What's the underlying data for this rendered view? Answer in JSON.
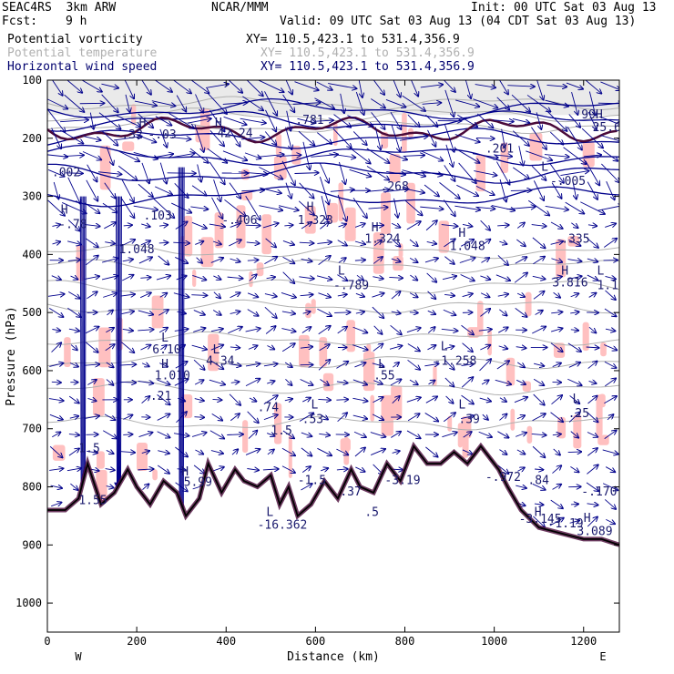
{
  "header": {
    "model": "SEAC4RS  3km ARW",
    "fcst_label": "Fcst:",
    "fcst_value": "9 h",
    "org": "NCAR/MMM",
    "init": "Init: 00 UTC Sat 03 Aug 13",
    "valid": "Valid: 09 UTC Sat 03 Aug 13 (04 CDT Sat 03 Aug 13)"
  },
  "fields": [
    {
      "name": "Potential vorticity",
      "xy": "XY= 110.5,423.1 to 531.4,356.9",
      "color": "#000000"
    },
    {
      "name": "Potential temperature",
      "xy": "XY= 110.5,423.1 to 531.4,356.9",
      "color": "#b0b0b0"
    },
    {
      "name": "Horizontal wind speed",
      "xy": "XY= 110.5,423.1 to 531.4,356.9",
      "color": "#00006e"
    }
  ],
  "colors": {
    "pv_fill": "#ffc0c0",
    "pv_dark": "#4a0a3a",
    "theta": "#b0b0b0",
    "wind": "#00008b",
    "terrain": "#000000"
  },
  "chart_data": {
    "type": "cross-section",
    "xlabel": "Distance (km)",
    "ylabel": "Pressure (hPa)",
    "xlim": [
      0,
      1280
    ],
    "ylim": [
      1050,
      100
    ],
    "x_ticks": [
      0,
      200,
      400,
      600,
      800,
      1000,
      1200
    ],
    "y_ticks": [
      100,
      200,
      300,
      400,
      500,
      600,
      700,
      800,
      900,
      1000
    ],
    "x_end_labels": {
      "left": "W",
      "right": "E"
    },
    "terrain": {
      "x": [
        0,
        40,
        70,
        90,
        120,
        150,
        180,
        200,
        230,
        260,
        290,
        310,
        340,
        360,
        390,
        420,
        440,
        470,
        500,
        520,
        540,
        560,
        590,
        620,
        650,
        680,
        700,
        730,
        760,
        790,
        820,
        850,
        880,
        910,
        940,
        970,
        990,
        1010,
        1030,
        1060,
        1100,
        1150,
        1200,
        1240,
        1280
      ],
      "p": [
        840,
        840,
        820,
        760,
        830,
        810,
        770,
        800,
        830,
        790,
        810,
        850,
        820,
        760,
        810,
        770,
        790,
        800,
        780,
        830,
        800,
        850,
        830,
        790,
        820,
        770,
        800,
        810,
        760,
        790,
        730,
        760,
        760,
        740,
        760,
        730,
        750,
        770,
        800,
        840,
        870,
        880,
        890,
        890,
        900
      ]
    },
    "theta_contours_p": [
      140,
      160,
      180,
      395,
      420,
      455,
      490,
      545,
      585,
      630,
      690
    ],
    "wind_grid": {
      "x_step_km": 40,
      "p_step_hpa": 30
    },
    "annotations": [
      {
        "t": "H",
        "x": 205,
        "p": 180
      },
      {
        "t": "-.03",
        "x": 225,
        "p": 200
      },
      {
        "t": "H",
        "x": 375,
        "p": 180
      },
      {
        "t": "42.24",
        "x": 380,
        "p": 198
      },
      {
        "t": ".781",
        "x": 555,
        "p": 175
      },
      {
        "t": "-.32",
        "x": 150,
        "p": 200
      },
      {
        "t": ".201",
        "x": 980,
        "p": 225
      },
      {
        "t": "99H",
        "x": 1195,
        "p": 166
      },
      {
        "t": "25.6",
        "x": 1220,
        "p": 188
      },
      {
        "t": ".002",
        "x": 10,
        "p": 265
      },
      {
        "t": "L",
        "x": 1105,
        "p": 256
      },
      {
        "t": "-.005",
        "x": 1125,
        "p": 280
      },
      {
        "t": ".268",
        "x": 745,
        "p": 290
      },
      {
        "t": "H",
        "x": 30,
        "p": 330
      },
      {
        "t": "-.78",
        "x": 25,
        "p": 355
      },
      {
        "t": ".103",
        "x": 215,
        "p": 340
      },
      {
        "t": "H",
        "x": 580,
        "p": 325
      },
      {
        "t": "1.323",
        "x": 560,
        "p": 348
      },
      {
        "t": "-.406",
        "x": 390,
        "p": 348
      },
      {
        "t": "H",
        "x": 725,
        "p": 360
      },
      {
        "t": "1.324",
        "x": 710,
        "p": 380
      },
      {
        "t": "H",
        "x": 920,
        "p": 370
      },
      {
        "t": "1.048",
        "x": 900,
        "p": 392
      },
      {
        "t": "1.048",
        "x": 160,
        "p": 398
      },
      {
        "t": ".335",
        "x": 1150,
        "p": 380
      },
      {
        "t": "L",
        "x": 650,
        "p": 435
      },
      {
        "t": "-.789",
        "x": 640,
        "p": 460
      },
      {
        "t": "H",
        "x": 1150,
        "p": 435
      },
      {
        "t": "3.816",
        "x": 1130,
        "p": 455
      },
      {
        "t": "L",
        "x": 1230,
        "p": 435
      },
      {
        "t": "1.14",
        "x": 1230,
        "p": 460
      },
      {
        "t": "L",
        "x": 255,
        "p": 550
      },
      {
        "t": "6.10",
        "x": 235,
        "p": 570
      },
      {
        "t": "L",
        "x": 370,
        "p": 570
      },
      {
        "t": "4.34",
        "x": 355,
        "p": 590
      },
      {
        "t": "H",
        "x": 255,
        "p": 595
      },
      {
        "t": "1.010",
        "x": 240,
        "p": 615
      },
      {
        "t": "L",
        "x": 880,
        "p": 565
      },
      {
        "t": "-1.258",
        "x": 865,
        "p": 590
      },
      {
        "t": "L",
        "x": 740,
        "p": 595
      },
      {
        "t": ".55",
        "x": 730,
        "p": 615
      },
      {
        "t": ".21",
        "x": 230,
        "p": 650
      },
      {
        "t": ".74",
        "x": 470,
        "p": 670
      },
      {
        "t": "L",
        "x": 590,
        "p": 665
      },
      {
        "t": ".53",
        "x": 570,
        "p": 690
      },
      {
        "t": "L",
        "x": 920,
        "p": 665
      },
      {
        "t": ".39",
        "x": 920,
        "p": 690
      },
      {
        "t": "L",
        "x": 1175,
        "p": 655
      },
      {
        "t": ".25",
        "x": 1165,
        "p": 680
      },
      {
        "t": "1.5",
        "x": 500,
        "p": 710
      },
      {
        "t": "1.5",
        "x": 70,
        "p": 740
      },
      {
        "t": "H",
        "x": 300,
        "p": 780
      },
      {
        "t": "5.99",
        "x": 305,
        "p": 798
      },
      {
        "t": "-1.5",
        "x": 560,
        "p": 795
      },
      {
        "t": ".37",
        "x": 655,
        "p": 815
      },
      {
        "t": "-3.19",
        "x": 755,
        "p": 795
      },
      {
        "t": "-.972",
        "x": 980,
        "p": 790
      },
      {
        "t": ".84",
        "x": 1075,
        "p": 795
      },
      {
        "t": "-.170",
        "x": 1195,
        "p": 815
      },
      {
        "t": "1.55",
        "x": 70,
        "p": 830
      },
      {
        "t": "-3.145",
        "x": 1055,
        "p": 862
      },
      {
        "t": "H",
        "x": 1090,
        "p": 850
      },
      {
        "t": "-1.19",
        "x": 1120,
        "p": 870
      },
      {
        "t": "H",
        "x": 1200,
        "p": 860
      },
      {
        "t": "3.089",
        "x": 1185,
        "p": 883
      },
      {
        "t": "L",
        "x": 490,
        "p": 850
      },
      {
        "t": "-16.362",
        "x": 470,
        "p": 872
      },
      {
        "t": ".5",
        "x": 710,
        "p": 850
      }
    ]
  }
}
